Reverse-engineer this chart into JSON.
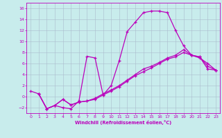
{
  "xlabel": "Windchill (Refroidissement éolien,°C)",
  "background_color": "#c8ecec",
  "line_color": "#bb00bb",
  "grid_color": "#aabbcc",
  "xlim": [
    -0.5,
    23.5
  ],
  "ylim": [
    -3.0,
    17.0
  ],
  "xticks": [
    0,
    1,
    2,
    3,
    4,
    5,
    6,
    7,
    8,
    9,
    10,
    11,
    12,
    13,
    14,
    15,
    16,
    17,
    18,
    19,
    20,
    21,
    22,
    23
  ],
  "yticks": [
    -2,
    0,
    2,
    4,
    6,
    8,
    10,
    12,
    14,
    16
  ],
  "line1_x": [
    0,
    1,
    2,
    3,
    4,
    5,
    6,
    7,
    8,
    9,
    10,
    11,
    12,
    13,
    14,
    15,
    16,
    17,
    18,
    19,
    20,
    21,
    22,
    23
  ],
  "line1_y": [
    1.0,
    0.5,
    -2.2,
    -1.6,
    -2.0,
    -2.2,
    -0.8,
    7.3,
    7.0,
    0.3,
    2.0,
    6.5,
    11.8,
    13.5,
    15.2,
    15.5,
    15.5,
    15.2,
    12.0,
    9.2,
    7.5,
    7.2,
    5.0,
    4.8
  ],
  "line2_x": [
    1,
    2,
    3,
    4,
    5,
    6,
    7,
    8,
    9,
    10,
    11,
    12,
    13,
    14,
    15,
    16,
    17,
    18,
    19,
    20,
    21,
    22,
    23
  ],
  "line2_y": [
    0.5,
    -2.2,
    -1.6,
    -0.5,
    -1.5,
    -1.0,
    -0.8,
    -0.5,
    0.3,
    1.0,
    1.8,
    2.8,
    3.8,
    4.5,
    5.2,
    6.0,
    6.8,
    7.2,
    8.0,
    7.5,
    7.0,
    6.0,
    4.8
  ],
  "line3_x": [
    1,
    2,
    3,
    4,
    5,
    6,
    7,
    8,
    9,
    10,
    11,
    12,
    13,
    14,
    15,
    16,
    17,
    18,
    19,
    20,
    21,
    22,
    23
  ],
  "line3_y": [
    0.5,
    -2.2,
    -1.6,
    -0.5,
    -1.5,
    -1.0,
    -0.8,
    -0.3,
    0.5,
    1.2,
    2.0,
    3.0,
    4.0,
    5.0,
    5.5,
    6.2,
    7.0,
    7.5,
    8.5,
    7.5,
    7.2,
    5.5,
    4.8
  ]
}
